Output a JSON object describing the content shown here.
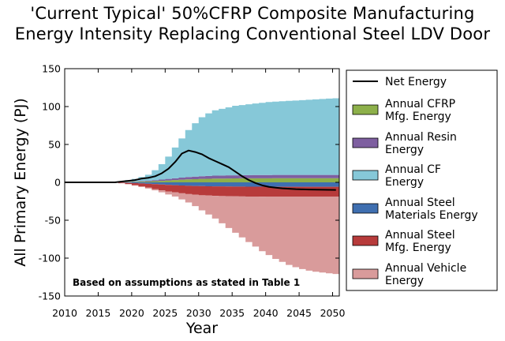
{
  "chart_data": {
    "type": "area",
    "title": "'Current Typical' 50%CFRP Composite Manufacturing Energy Intensity Replacing Conventional Steel LDV Door",
    "title_lines": [
      "'Current Typical' 50%CFRP Composite Manufacturing",
      "Energy Intensity Replacing Conventional Steel LDV Door"
    ],
    "xlabel": "Year",
    "ylabel": "All Primary Energy (PJ)",
    "xlim": [
      2010,
      2051
    ],
    "ylim": [
      -150,
      150
    ],
    "xticks": [
      2010,
      2015,
      2020,
      2025,
      2030,
      2035,
      2040,
      2045,
      2050
    ],
    "yticks": [
      150,
      100,
      50,
      0,
      -50,
      -100,
      -150
    ],
    "annotation": "Based on assumptions as stated in Table 1",
    "legend_position": "right, outside plot",
    "x": [
      2017,
      2018,
      2019,
      2020,
      2021,
      2022,
      2023,
      2024,
      2025,
      2026,
      2027,
      2028,
      2029,
      2030,
      2031,
      2032,
      2033,
      2034,
      2035,
      2036,
      2037,
      2038,
      2039,
      2040,
      2041,
      2042,
      2043,
      2044,
      2045,
      2046,
      2047,
      2048,
      2049,
      2050
    ],
    "series": [
      {
        "name": "Annual CFRP Mfg. Energy",
        "kind": "area",
        "color": "#8db04a",
        "values": [
          0,
          0.2,
          0.4,
          0.6,
          0.9,
          1.2,
          1.6,
          2.0,
          2.5,
          3.0,
          3.5,
          3.9,
          4.2,
          4.5,
          4.7,
          4.9,
          5.0,
          5.1,
          5.2,
          5.3,
          5.3,
          5.4,
          5.4,
          5.4,
          5.5,
          5.5,
          5.5,
          5.5,
          5.5,
          5.5,
          5.5,
          5.5,
          5.5,
          5.5
        ]
      },
      {
        "name": "Annual Resin Energy",
        "kind": "area",
        "color": "#7e5fa0",
        "values": [
          0,
          0.1,
          0.3,
          0.5,
          0.7,
          0.9,
          1.2,
          1.6,
          2.0,
          2.4,
          2.8,
          3.1,
          3.4,
          3.6,
          3.8,
          3.9,
          4.0,
          4.1,
          4.1,
          4.2,
          4.2,
          4.2,
          4.3,
          4.3,
          4.3,
          4.3,
          4.3,
          4.3,
          4.3,
          4.3,
          4.3,
          4.3,
          4.3,
          4.3
        ]
      },
      {
        "name": "Annual CF Energy",
        "kind": "area",
        "color": "#86c8d8",
        "values": [
          0,
          0.7,
          2.3,
          3.4,
          5.4,
          7.9,
          13.2,
          20.4,
          29.5,
          40.6,
          51.7,
          62.0,
          70.4,
          77.9,
          82.5,
          86.2,
          88.0,
          89.8,
          91.7,
          92.5,
          93.5,
          94.4,
          95.3,
          96.3,
          96.7,
          97.2,
          97.7,
          98.2,
          98.7,
          99.2,
          99.7,
          100.2,
          100.7,
          101.2
        ]
      },
      {
        "name": "Annual Steel Materials Energy",
        "kind": "area",
        "color": "#3f6fb0",
        "values": [
          0,
          -0.3,
          -0.6,
          -1.0,
          -1.4,
          -1.9,
          -2.4,
          -2.9,
          -3.4,
          -3.8,
          -4.2,
          -4.5,
          -4.8,
          -5.0,
          -5.2,
          -5.3,
          -5.4,
          -5.5,
          -5.6,
          -5.6,
          -5.7,
          -5.7,
          -5.7,
          -5.8,
          -5.8,
          -5.8,
          -5.8,
          -5.8,
          -5.8,
          -5.8,
          -5.8,
          -5.8,
          -5.8,
          -5.8
        ]
      },
      {
        "name": "Annual Steel Mfg. Energy",
        "kind": "area",
        "color": "#b73b3b",
        "values": [
          0,
          -0.8,
          -1.5,
          -2.6,
          -3.8,
          -5.1,
          -6.4,
          -7.6,
          -8.6,
          -9.5,
          -10.3,
          -11.0,
          -11.6,
          -12.0,
          -12.3,
          -12.5,
          -12.7,
          -12.8,
          -12.9,
          -13.0,
          -13.1,
          -13.1,
          -13.2,
          -13.2,
          -13.2,
          -13.2,
          -13.2,
          -13.2,
          -13.2,
          -13.2,
          -13.2,
          -13.2,
          -13.2,
          -13.2
        ]
      },
      {
        "name": "Annual Vehicle Energy",
        "kind": "area",
        "color": "#d99b9b",
        "values": [
          0,
          -0.2,
          -0.5,
          -0.7,
          -0.9,
          -1.2,
          -1.8,
          -2.7,
          -4.0,
          -5.5,
          -8.0,
          -11.0,
          -15.0,
          -20.0,
          -25.0,
          -30.0,
          -36.0,
          -42.0,
          -48.0,
          -54.0,
          -60.0,
          -66.0,
          -72.0,
          -77.0,
          -82.0,
          -86.0,
          -90.0,
          -93.0,
          -95.5,
          -97.5,
          -99.0,
          -100.0,
          -101.0,
          -102.0
        ]
      },
      {
        "name": "Net Energy",
        "kind": "line",
        "color": "#000000",
        "values": [
          0,
          1,
          2,
          3,
          5,
          6,
          8,
          12,
          18,
          27,
          38,
          42,
          40,
          37,
          32,
          28,
          24,
          20,
          14,
          8,
          3,
          -1,
          -4,
          -6,
          -7,
          -8,
          -8.5,
          -9,
          -9.3,
          -9.5,
          -9.7,
          -9.8,
          -9.9,
          -10
        ],
        "lead_in_x": [
          2010,
          2017
        ],
        "lead_in_y": [
          0,
          0
        ]
      }
    ]
  }
}
